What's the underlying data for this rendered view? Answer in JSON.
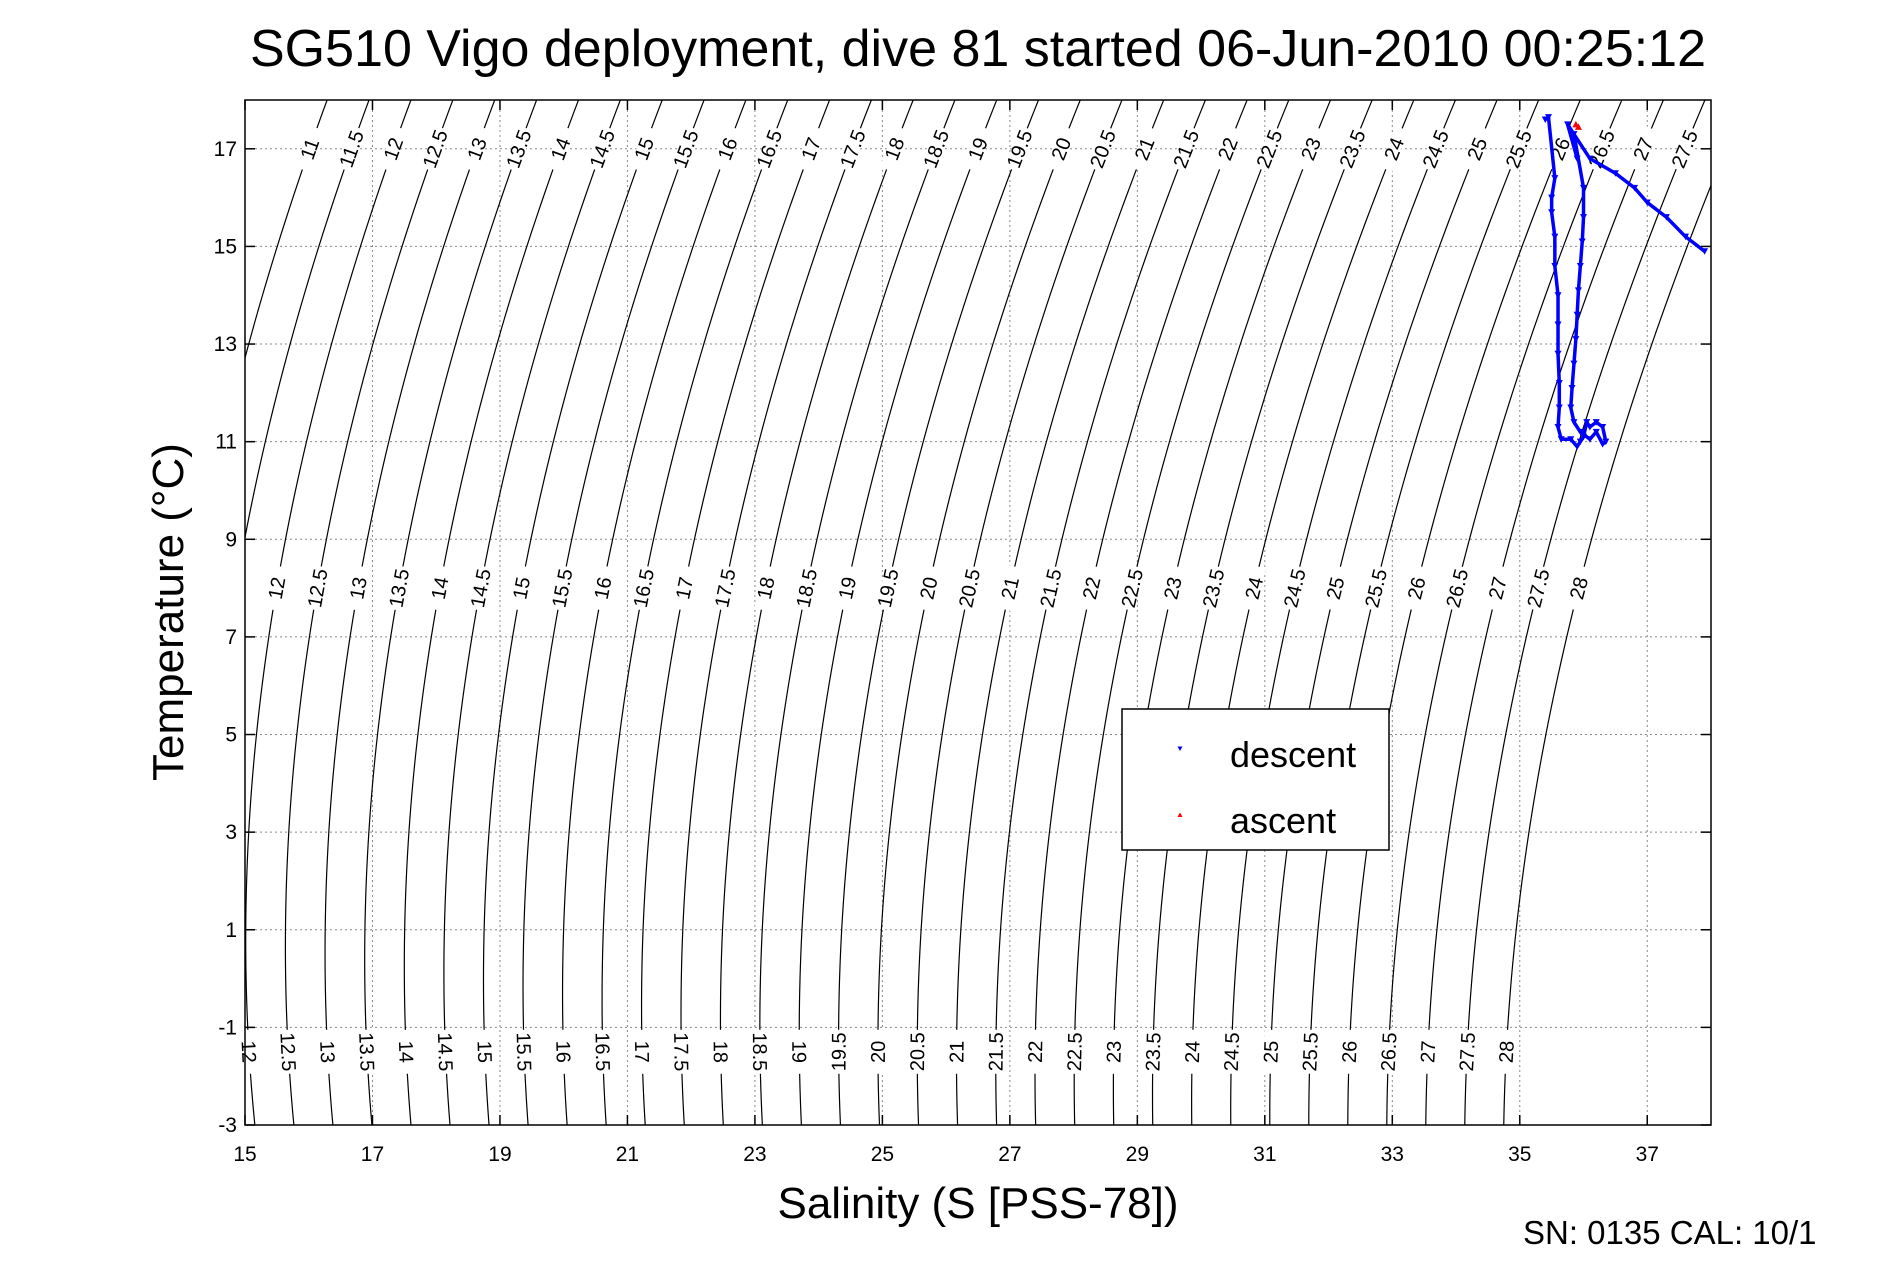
{
  "chart_data": {
    "type": "scatter",
    "title": "SG510 Vigo deployment, dive 81 started 06-Jun-2010 00:25:12",
    "xlabel": "Salinity (S [PSS-78])",
    "ylabel": "Temperature (°C)",
    "xlim": [
      15,
      38
    ],
    "ylim": [
      -3,
      18
    ],
    "x_ticks": [
      15,
      17,
      19,
      21,
      23,
      25,
      27,
      29,
      31,
      33,
      35,
      37
    ],
    "y_ticks": [
      -3,
      -1,
      1,
      3,
      5,
      7,
      9,
      11,
      13,
      15,
      17
    ],
    "x_tick_labels": [
      "15",
      "17",
      "19",
      "21",
      "23",
      "25",
      "27",
      "29",
      "31",
      "33",
      "35",
      "37"
    ],
    "y_tick_labels": [
      "-3",
      "-1",
      "1",
      "3",
      "5",
      "7",
      "9",
      "11",
      "13",
      "15",
      "17"
    ],
    "grid": true,
    "legend_position": "center-right",
    "density_contours": {
      "levels": [
        11,
        11.5,
        12,
        12.5,
        13,
        13.5,
        14,
        14.5,
        15,
        15.5,
        16,
        16.5,
        17,
        17.5,
        18,
        18.5,
        19,
        19.5,
        20,
        20.5,
        21,
        21.5,
        22,
        22.5,
        23,
        23.5,
        24,
        24.5,
        25,
        25.5,
        26,
        26.5,
        27,
        27.5,
        28
      ],
      "labels": [
        "11",
        "11.5",
        "12",
        "12.5",
        "13",
        "13.5",
        "14",
        "14.5",
        "15",
        "15.5",
        "16",
        "16.5",
        "17",
        "17.5",
        "18",
        "18.5",
        "19",
        "19.5",
        "20",
        "20.5",
        "21",
        "21.5",
        "22",
        "22.5",
        "23",
        "23.5",
        "24",
        "24.5",
        "25",
        "25.5",
        "26",
        "26.5",
        "27",
        "27.5",
        "28"
      ]
    },
    "series": [
      {
        "name": "descent",
        "color": "#0000ff",
        "marker": "triangle-down",
        "points": [
          [
            35.4,
            17.6
          ],
          [
            35.45,
            17.65
          ],
          [
            35.55,
            16.4
          ],
          [
            35.5,
            16.0
          ],
          [
            35.5,
            15.7
          ],
          [
            35.55,
            15.2
          ],
          [
            35.55,
            14.6
          ],
          [
            35.6,
            14.0
          ],
          [
            35.6,
            13.4
          ],
          [
            35.6,
            12.8
          ],
          [
            35.62,
            12.2
          ],
          [
            35.62,
            11.7
          ],
          [
            35.6,
            11.3
          ],
          [
            35.65,
            11.05
          ],
          [
            35.8,
            11.05
          ],
          [
            35.9,
            10.9
          ],
          [
            35.95,
            11.0
          ],
          [
            36.0,
            11.1
          ],
          [
            36.05,
            11.4
          ],
          [
            36.1,
            11.3
          ],
          [
            36.2,
            11.4
          ],
          [
            36.3,
            11.3
          ],
          [
            36.35,
            11.0
          ],
          [
            36.3,
            10.95
          ],
          [
            36.2,
            11.2
          ],
          [
            36.1,
            11.05
          ],
          [
            35.95,
            11.2
          ],
          [
            35.85,
            11.4
          ],
          [
            35.8,
            11.7
          ],
          [
            35.82,
            12.1
          ],
          [
            35.85,
            12.6
          ],
          [
            35.88,
            13.1
          ],
          [
            35.9,
            13.6
          ],
          [
            35.92,
            14.1
          ],
          [
            35.95,
            14.6
          ],
          [
            35.98,
            15.1
          ],
          [
            36.0,
            15.6
          ],
          [
            36.0,
            16.2
          ],
          [
            35.85,
            17.3
          ],
          [
            35.9,
            16.8
          ],
          [
            35.75,
            17.5
          ],
          [
            36.1,
            16.8
          ],
          [
            36.5,
            16.5
          ],
          [
            36.8,
            16.2
          ],
          [
            37.0,
            15.9
          ],
          [
            37.3,
            15.6
          ],
          [
            37.6,
            15.2
          ],
          [
            37.9,
            14.9
          ]
        ]
      },
      {
        "name": "ascent",
        "color": "#ff0000",
        "marker": "triangle-up",
        "points": [
          [
            35.92,
            17.45
          ],
          [
            35.88,
            17.5
          ]
        ]
      }
    ],
    "annotation": "SN: 0135  CAL: 10/1"
  }
}
